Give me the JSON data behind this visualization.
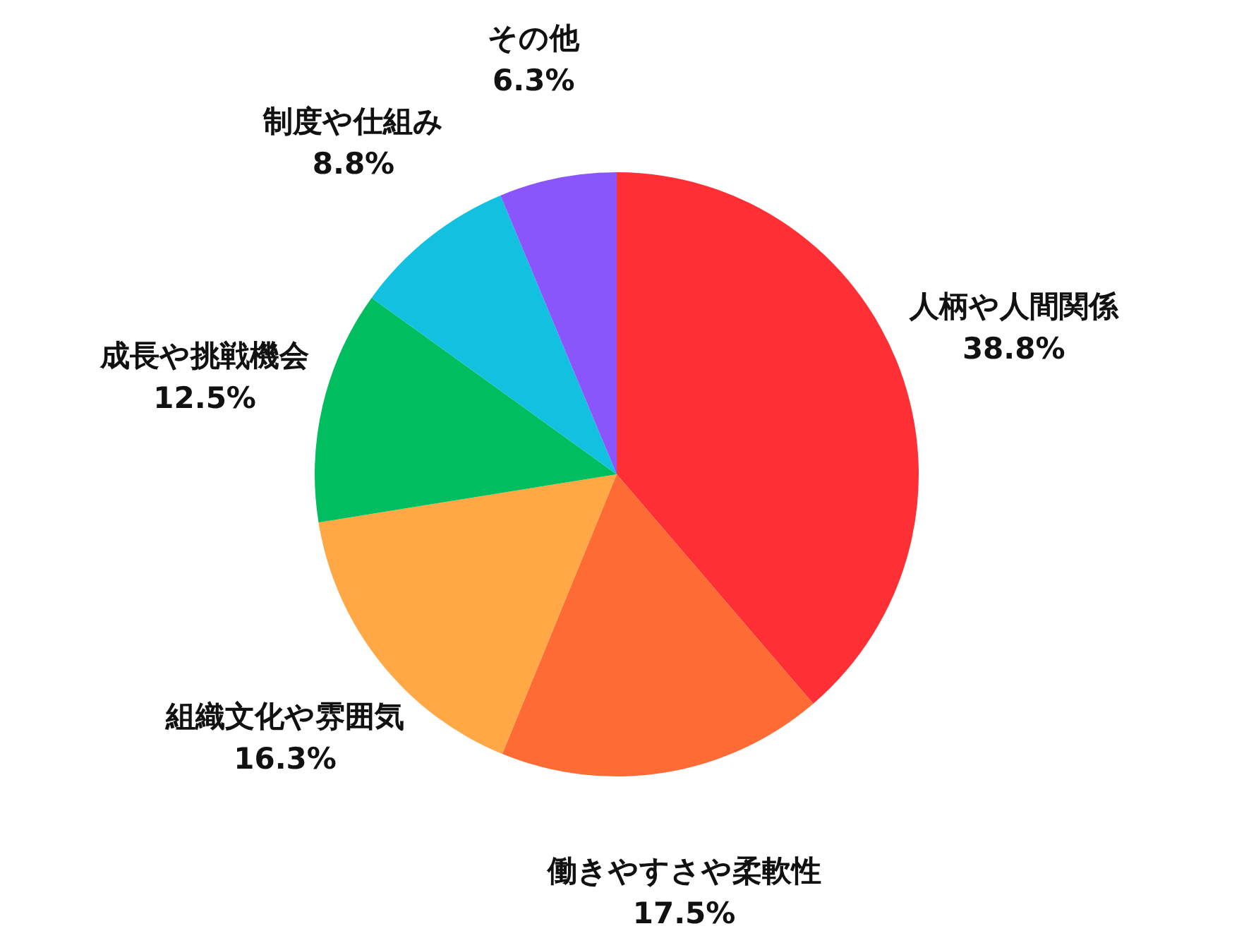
{
  "chart_data": {
    "type": "pie",
    "categories": [
      "人柄や人間関係",
      "働きやすさや柔軟性",
      "組織文化や雰囲気",
      "成長や挑戦機会",
      "制度や仕組み",
      "その他"
    ],
    "values": [
      38.8,
      17.5,
      16.3,
      12.5,
      8.8,
      6.3
    ],
    "value_labels": [
      "38.8%",
      "17.5%",
      "16.3%",
      "12.5%",
      "8.8%",
      "6.3%"
    ],
    "colors": [
      "#ff3035",
      "#ff6b35",
      "#ffa845",
      "#00be5f",
      "#12c0e0",
      "#8a55fb"
    ]
  }
}
